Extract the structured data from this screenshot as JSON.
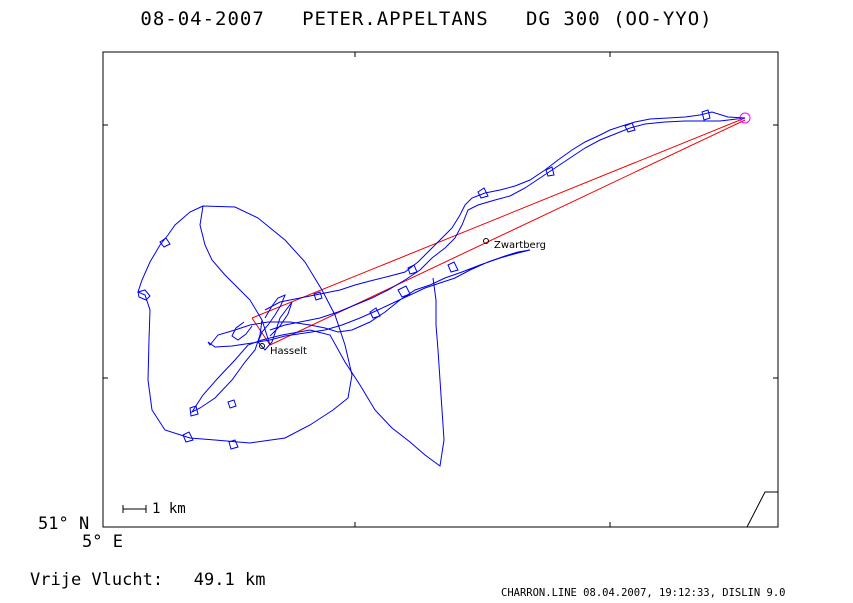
{
  "header": {
    "date": "08-04-2007",
    "pilot": "PETER.APPELTANS",
    "glider": "DG 300 (OO-YYO)"
  },
  "axes": {
    "lat_label": "51° N",
    "lon_label": "5° E"
  },
  "scale_bar": {
    "label": "1 km"
  },
  "places": [
    {
      "name": "Hasselt"
    },
    {
      "name": "Zwartberg"
    }
  ],
  "flight": {
    "free_flight_label": "Vrije Vlucht:",
    "free_flight_value": "49.1 km"
  },
  "footer": "CHARRON.LINE 08.04.2007, 19:12:33, DISLIN 9.0",
  "colors": {
    "track": "#0000ee",
    "task_line": "#ee0000",
    "turnpoint": "#ff00ff",
    "frame": "#000000"
  }
}
